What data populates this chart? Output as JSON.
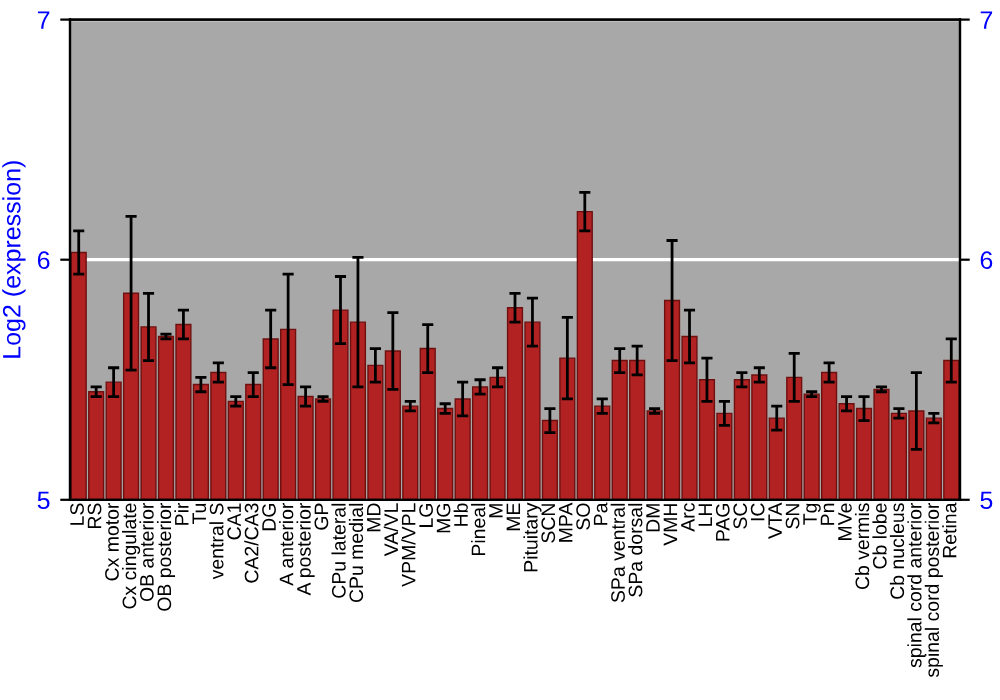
{
  "chart_data": {
    "type": "bar",
    "ylabel": "Log2 (expression)",
    "categories": [
      "LS",
      "RS",
      "Cx motor",
      "Cx cingulate",
      "OB anterior",
      "OB posterior",
      "Pir",
      "Tu",
      "ventral S",
      "CA1",
      "CA2/CA3",
      "DG",
      "A anterior",
      "A posterior",
      "GP",
      "CPu lateral",
      "CPu medial",
      "MD",
      "VA/VL",
      "VPM/VPL",
      "LG",
      "MG",
      "Hb",
      "Pineal",
      "M",
      "ME",
      "Pituitary",
      "SCN",
      "MPA",
      "SO",
      "Pa",
      "SPa ventral",
      "SPa dorsal",
      "DM",
      "VMH",
      "Arc",
      "LH",
      "PAG",
      "SC",
      "IC",
      "VTA",
      "SN",
      "Tg",
      "Pn",
      "MVe",
      "Cb vermis",
      "Cb lobe",
      "Cb nucleus",
      "spinal cord anterior",
      "spinal cord posterior",
      "Retina"
    ],
    "values": [
      6.03,
      5.45,
      5.49,
      5.86,
      5.72,
      5.68,
      5.73,
      5.48,
      5.53,
      5.41,
      5.48,
      5.67,
      5.71,
      5.43,
      5.42,
      5.79,
      5.74,
      5.56,
      5.62,
      5.39,
      5.63,
      5.38,
      5.42,
      5.47,
      5.51,
      5.8,
      5.74,
      5.33,
      5.59,
      6.2,
      5.39,
      5.58,
      5.58,
      5.37,
      5.83,
      5.68,
      5.5,
      5.36,
      5.5,
      5.52,
      5.34,
      5.51,
      5.44,
      5.53,
      5.4,
      5.38,
      5.46,
      5.36,
      5.37,
      5.34,
      5.58
    ],
    "errors": [
      0.09,
      0.02,
      0.06,
      0.32,
      0.14,
      0.01,
      0.06,
      0.03,
      0.04,
      0.02,
      0.05,
      0.12,
      0.23,
      0.04,
      0.01,
      0.14,
      0.27,
      0.07,
      0.16,
      0.02,
      0.1,
      0.02,
      0.07,
      0.03,
      0.04,
      0.06,
      0.1,
      0.05,
      0.17,
      0.08,
      0.03,
      0.05,
      0.06,
      0.01,
      0.25,
      0.11,
      0.09,
      0.05,
      0.03,
      0.03,
      0.05,
      0.1,
      0.01,
      0.04,
      0.03,
      0.05,
      0.01,
      0.02,
      0.16,
      0.02,
      0.09
    ],
    "color": "#b22222",
    "ylim": [
      5,
      7
    ],
    "yticks": [
      5,
      6,
      7
    ],
    "y2lim": [
      5,
      7
    ],
    "y2ticks": [
      5,
      6,
      7
    ],
    "grid": "y"
  }
}
